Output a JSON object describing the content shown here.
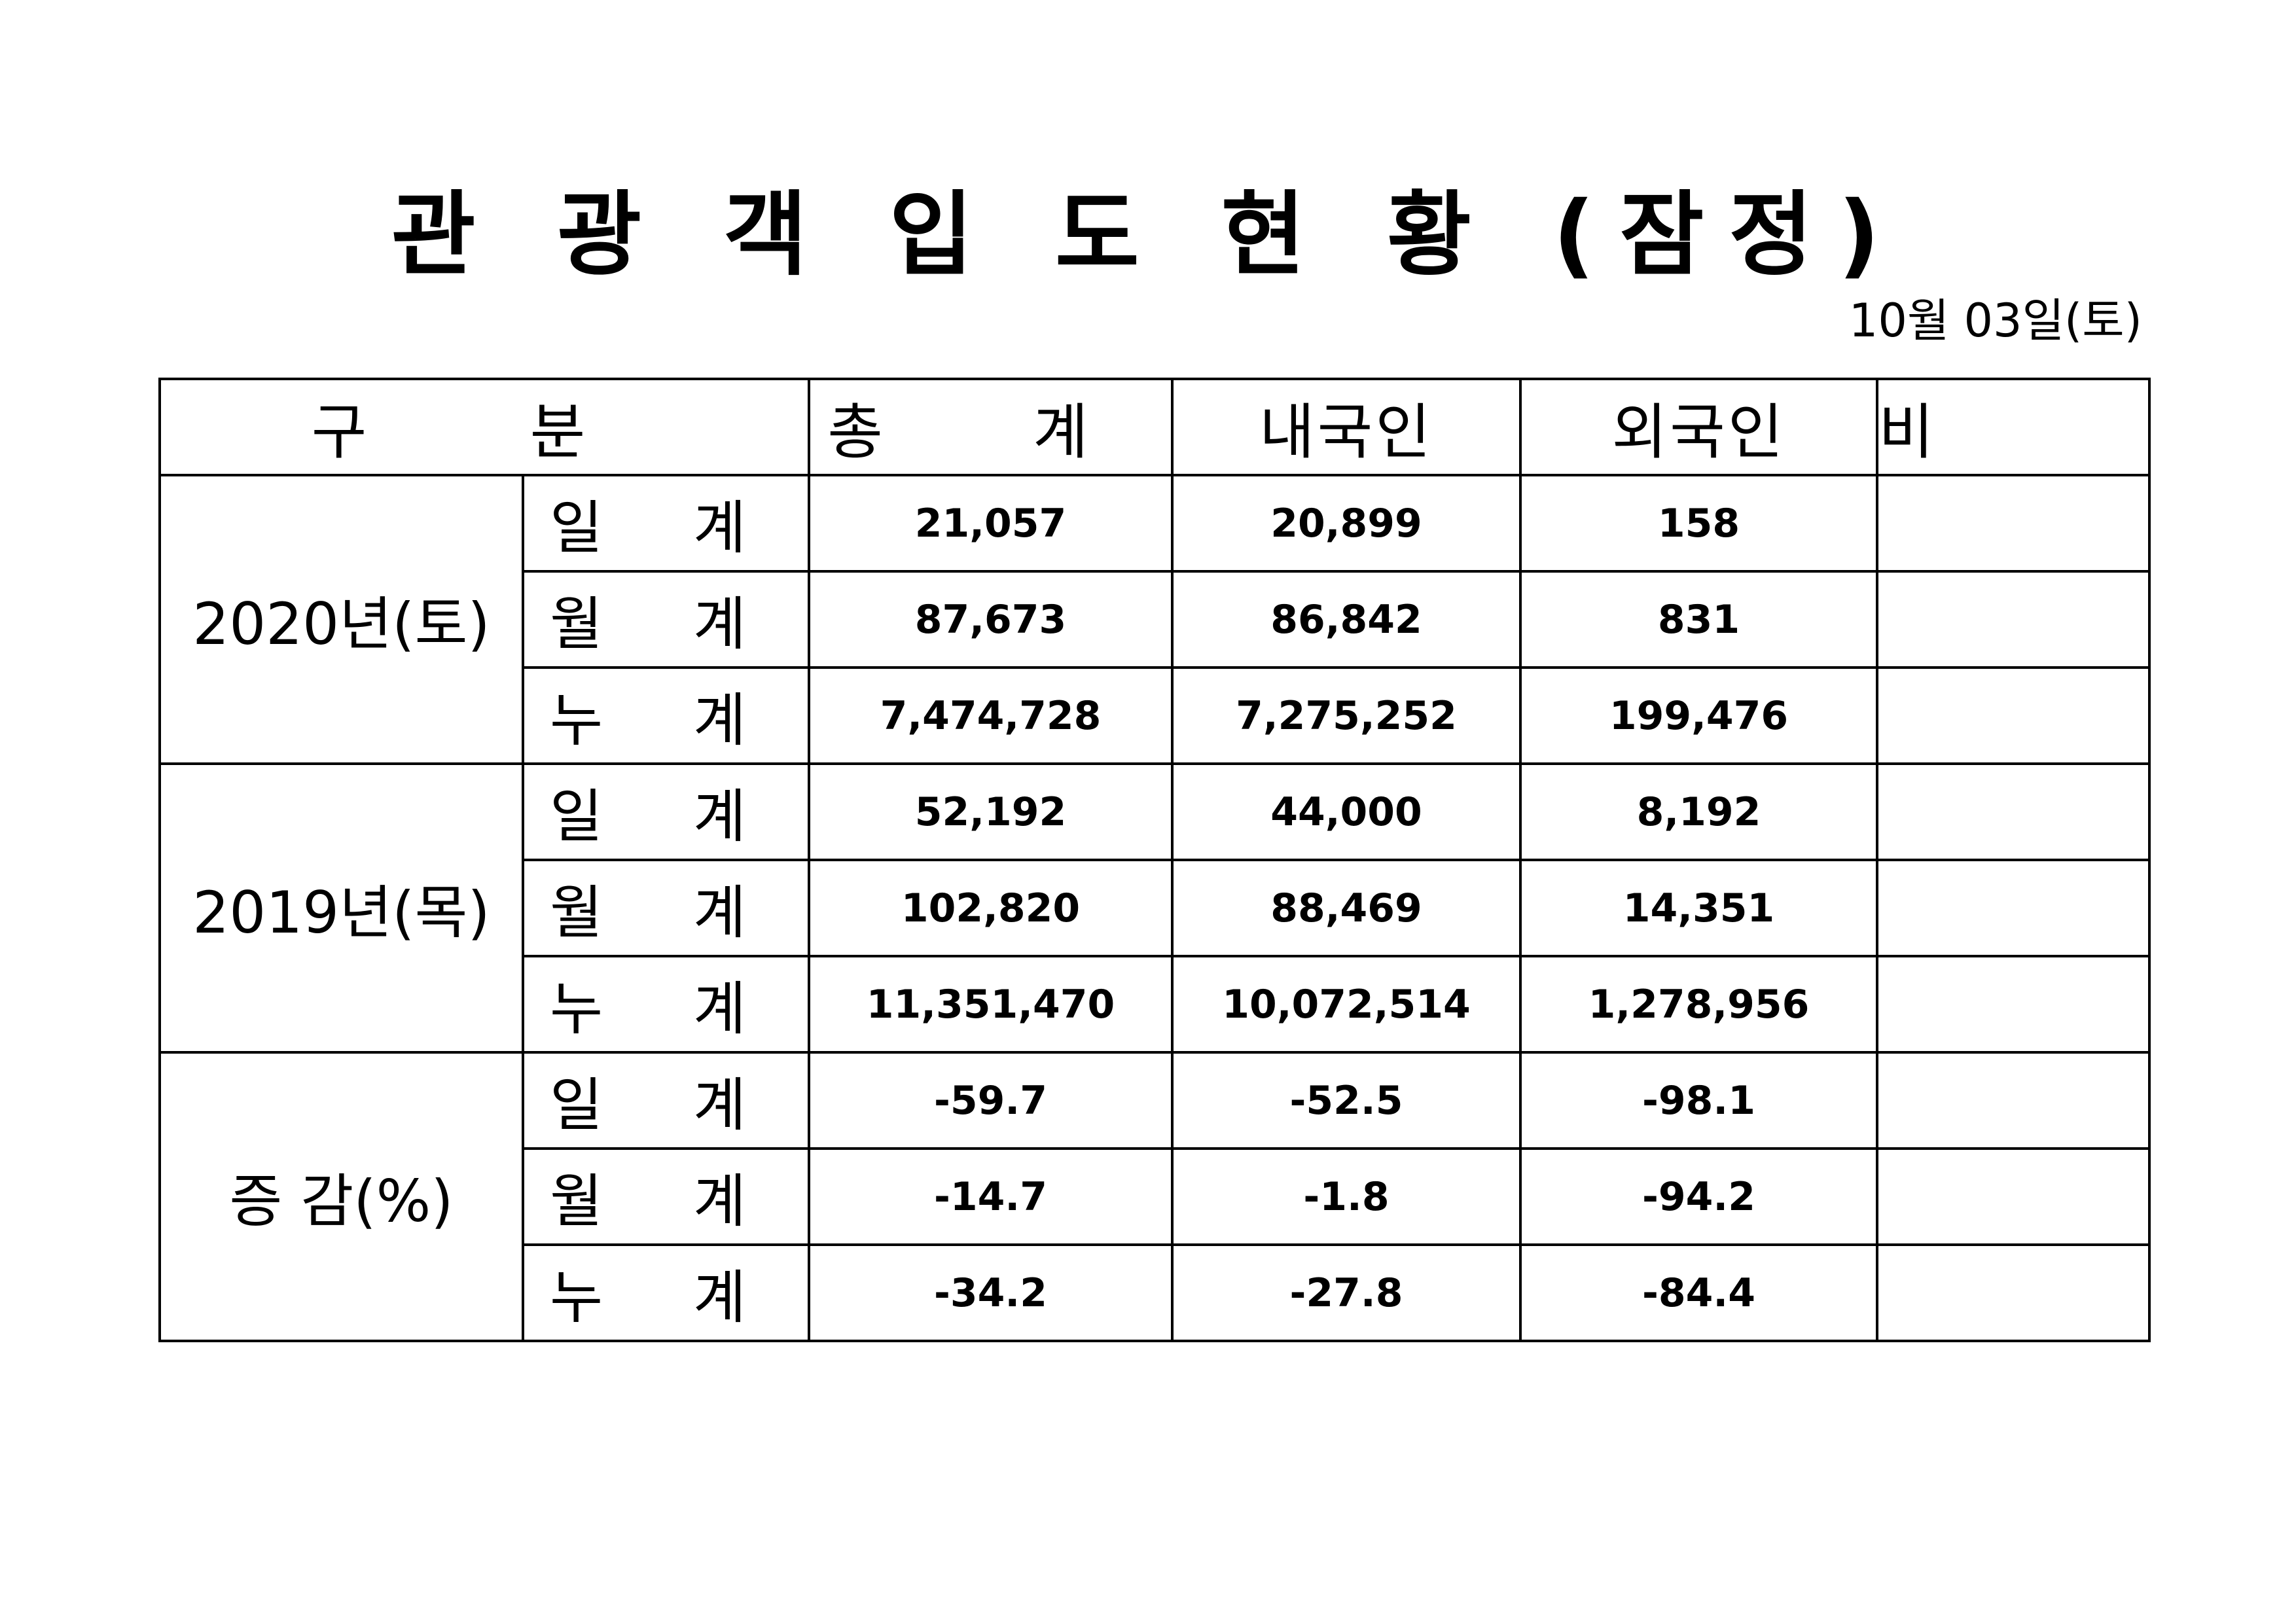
{
  "title": "관 광 객 입 도 현 황 (잠정)",
  "date": "10월 03일(토)",
  "header": {
    "category": "구 분",
    "total": "총 계",
    "domestic": "내국인",
    "foreign": "외국인",
    "note": "비 고"
  },
  "groups": [
    {
      "label": "2020년(토)",
      "rows": [
        {
          "metric": "일 계",
          "total": "21,057",
          "domestic": "20,899",
          "foreign": "158",
          "note": ""
        },
        {
          "metric": "월 계",
          "total": "87,673",
          "domestic": "86,842",
          "foreign": "831",
          "note": ""
        },
        {
          "metric": "누 계",
          "total": "7,474,728",
          "domestic": "7,275,252",
          "foreign": "199,476",
          "note": ""
        }
      ]
    },
    {
      "label": "2019년(목)",
      "rows": [
        {
          "metric": "일 계",
          "total": "52,192",
          "domestic": "44,000",
          "foreign": "8,192",
          "note": ""
        },
        {
          "metric": "월 계",
          "total": "102,820",
          "domestic": "88,469",
          "foreign": "14,351",
          "note": ""
        },
        {
          "metric": "누 계",
          "total": "11,351,470",
          "domestic": "10,072,514",
          "foreign": "1,278,956",
          "note": ""
        }
      ]
    },
    {
      "label": "증 감(%)",
      "rows": [
        {
          "metric": "일 계",
          "total": "-59.7",
          "domestic": "-52.5",
          "foreign": "-98.1",
          "note": ""
        },
        {
          "metric": "월 계",
          "total": "-14.7",
          "domestic": "-1.8",
          "foreign": "-94.2",
          "note": ""
        },
        {
          "metric": "누 계",
          "total": "-34.2",
          "domestic": "-27.8",
          "foreign": "-84.4",
          "note": ""
        }
      ]
    }
  ]
}
